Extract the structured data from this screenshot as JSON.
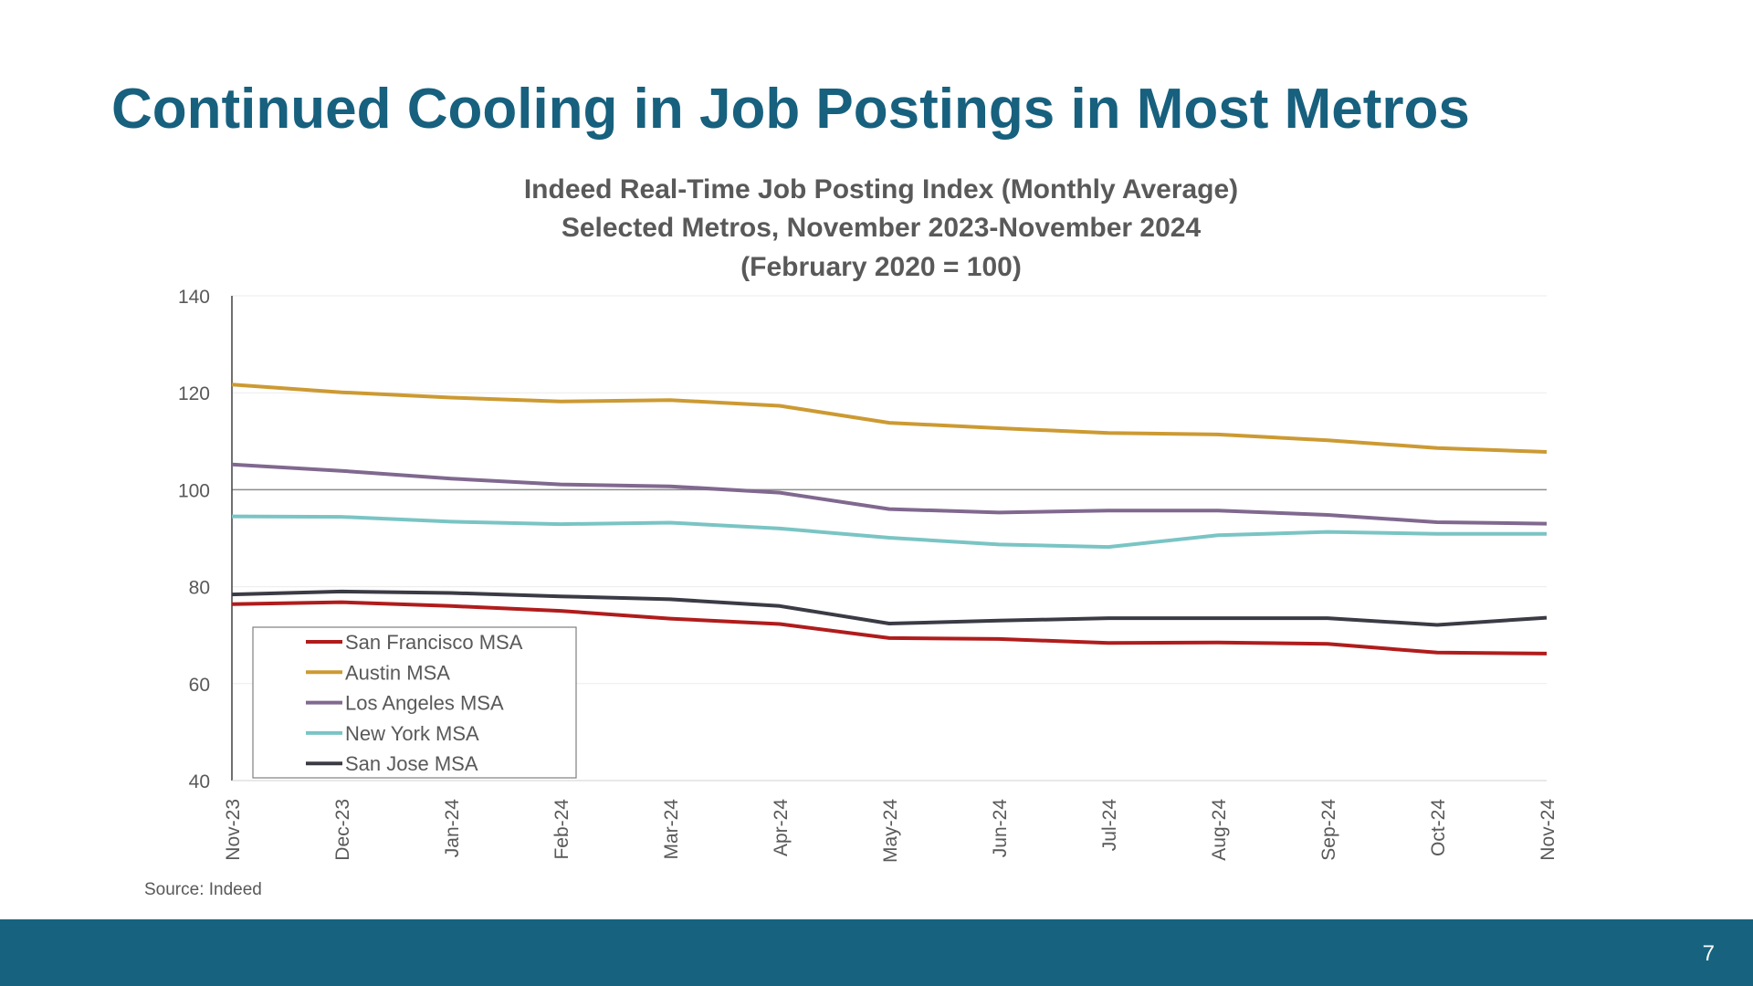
{
  "slide": {
    "title": "Continued Cooling in Job Postings in Most Metros",
    "source": "Source: Indeed",
    "page_number": "7",
    "footer_color": "#17637f",
    "title_color": "#17607e"
  },
  "chart_data": {
    "type": "line",
    "title_lines": [
      "Indeed Real-Time Job Posting Index (Monthly Average)",
      "Selected Metros, November 2023-November 2024",
      "(February 2020 = 100)"
    ],
    "categories": [
      "Nov-23",
      "Dec-23",
      "Jan-24",
      "Feb-24",
      "Mar-24",
      "Apr-24",
      "May-24",
      "Jun-24",
      "Jul-24",
      "Aug-24",
      "Sep-24",
      "Oct-24",
      "Nov-24"
    ],
    "ylim": [
      40,
      140
    ],
    "yticks": [
      40,
      60,
      80,
      100,
      120,
      140
    ],
    "reference_line": 100,
    "grid": true,
    "legend_position": "bottom-left",
    "series": [
      {
        "name": "San Francisco MSA",
        "color": "#b01c1c",
        "values": [
          76.4,
          76.8,
          76.0,
          75.0,
          73.4,
          72.3,
          69.4,
          69.2,
          68.4,
          68.5,
          68.2,
          66.4,
          66.2
        ]
      },
      {
        "name": "Austin MSA",
        "color": "#cc9a33",
        "values": [
          121.7,
          120.1,
          119.0,
          118.2,
          118.5,
          117.3,
          113.8,
          112.7,
          111.7,
          111.4,
          110.2,
          108.6,
          107.8
        ]
      },
      {
        "name": "Los Angeles MSA",
        "color": "#80688f",
        "values": [
          105.2,
          103.9,
          102.3,
          101.1,
          100.7,
          99.4,
          96.0,
          95.3,
          95.7,
          95.7,
          94.8,
          93.3,
          93.0
        ]
      },
      {
        "name": "New York MSA",
        "color": "#7ac4c4",
        "values": [
          94.5,
          94.4,
          93.4,
          92.9,
          93.2,
          92.0,
          90.1,
          88.7,
          88.2,
          90.6,
          91.3,
          90.9,
          90.9
        ]
      },
      {
        "name": "San Jose MSA",
        "color": "#3b3b45",
        "values": [
          78.4,
          79.0,
          78.7,
          78.0,
          77.4,
          76.0,
          72.4,
          73.0,
          73.5,
          73.5,
          73.5,
          72.1,
          73.6
        ]
      }
    ]
  }
}
